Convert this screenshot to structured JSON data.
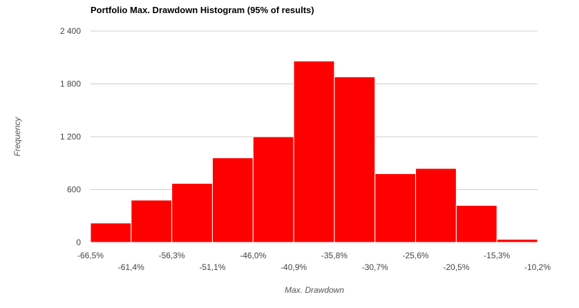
{
  "chart_data": {
    "type": "bar",
    "title": "Portfolio Max. Drawdown Histogram (95% of results)",
    "xlabel": "Max. Drawdown",
    "ylabel": "Frequency",
    "ylim": [
      0,
      2400
    ],
    "y_ticks": [
      "0",
      "600",
      "1 200",
      "1 800",
      "2 400"
    ],
    "y_tick_values": [
      0,
      600,
      1200,
      1800,
      2400
    ],
    "x_ticks": [
      "-66,5%",
      "-61,4%",
      "-56,3%",
      "-51,1%",
      "-46,0%",
      "-40,9%",
      "-35,8%",
      "-30,7%",
      "-25,6%",
      "-20,5%",
      "-15,3%",
      "-10,2%"
    ],
    "bins": [
      {
        "from": -66.5,
        "to": -61.4,
        "value": 220
      },
      {
        "from": -61.4,
        "to": -56.3,
        "value": 480
      },
      {
        "from": -56.3,
        "to": -51.1,
        "value": 670
      },
      {
        "from": -51.1,
        "to": -46.0,
        "value": 960
      },
      {
        "from": -46.0,
        "to": -40.9,
        "value": 1200
      },
      {
        "from": -40.9,
        "to": -35.8,
        "value": 2060
      },
      {
        "from": -35.8,
        "to": -30.7,
        "value": 1880
      },
      {
        "from": -30.7,
        "to": -25.6,
        "value": 780
      },
      {
        "from": -25.6,
        "to": -20.5,
        "value": 840
      },
      {
        "from": -20.5,
        "to": -15.3,
        "value": 420
      },
      {
        "from": -15.3,
        "to": -10.2,
        "value": 35
      }
    ],
    "grid": true,
    "legend": "none",
    "bar_color": "#ff0000"
  }
}
